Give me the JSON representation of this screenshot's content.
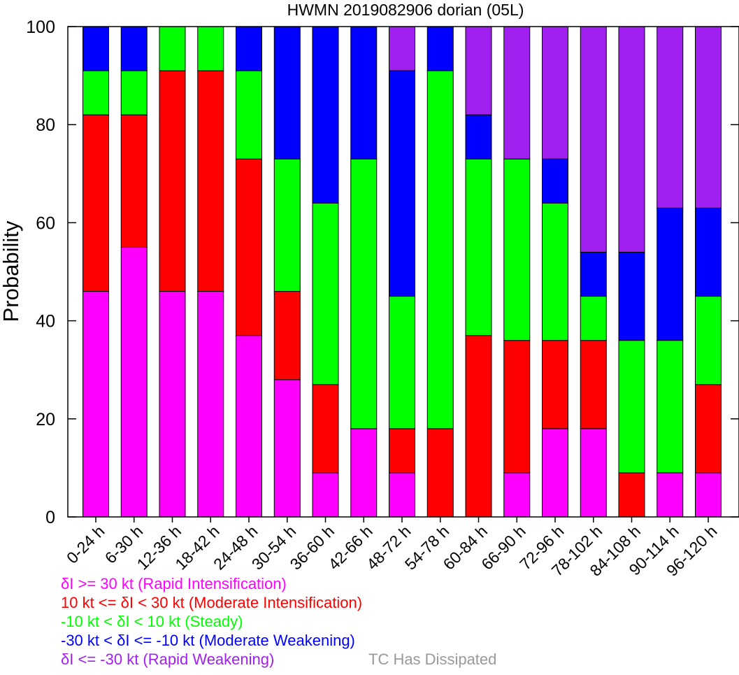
{
  "chart_data": {
    "type": "bar",
    "stacked": true,
    "title": "HWMN 2019082906 dorian (05L)",
    "xlabel": "",
    "ylabel": "Probability",
    "ylim": [
      0,
      100
    ],
    "yticks": [
      "0",
      "20",
      "40",
      "60",
      "80",
      "100"
    ],
    "grid": false,
    "categories": [
      "0-24 h",
      "6-30 h",
      "12-36 h",
      "18-42 h",
      "24-48 h",
      "30-54 h",
      "36-60 h",
      "42-66 h",
      "48-72 h",
      "54-78 h",
      "60-84 h",
      "66-90 h",
      "72-96 h",
      "78-102 h",
      "84-108 h",
      "90-114 h",
      "96-120 h"
    ],
    "series": [
      {
        "name": "δI >= 30 kt (Rapid Intensification)",
        "color": "#ff00ff",
        "values": [
          46,
          55,
          46,
          46,
          37,
          28,
          9,
          18,
          9,
          0,
          0,
          9,
          18,
          18,
          0,
          9,
          9
        ]
      },
      {
        "name": "10 kt <= δI < 30 kt (Moderate Intensification)",
        "color": "#ff0000",
        "values": [
          36,
          27,
          45,
          45,
          36,
          18,
          18,
          0,
          9,
          18,
          37,
          27,
          18,
          18,
          9,
          0,
          18
        ]
      },
      {
        "name": "-10 kt < δI < 10 kt (Steady)",
        "color": "#00ff00",
        "values": [
          9,
          9,
          9,
          9,
          18,
          27,
          37,
          55,
          27,
          73,
          36,
          37,
          28,
          9,
          27,
          27,
          18
        ]
      },
      {
        "name": "-30 kt < δI <= -10 kt (Moderate Weakening)",
        "color": "#0000ff",
        "values": [
          9,
          9,
          0,
          0,
          9,
          27,
          36,
          27,
          46,
          9,
          9,
          0,
          9,
          9,
          18,
          27,
          18
        ]
      },
      {
        "name": "δI <= -30 kt (Rapid Weakening)",
        "color": "#a020f0",
        "values": [
          0,
          0,
          0,
          0,
          0,
          0,
          0,
          0,
          9,
          0,
          18,
          27,
          27,
          46,
          46,
          37,
          37
        ]
      }
    ],
    "legend": {
      "placement": "bottom-left",
      "entries": [
        {
          "text": "δI >= 30 kt (Rapid Intensification)",
          "color": "#ff00ff"
        },
        {
          "text": "10 kt <= δI < 30 kt (Moderate Intensification)",
          "color": "#ff0000"
        },
        {
          "text": "-10 kt < δI < 10 kt (Steady)",
          "color": "#00ff00"
        },
        {
          "text": "-30 kt < δI <= -10 kt (Moderate Weakening)",
          "color": "#0000ff"
        },
        {
          "text": "δI <= -30 kt (Rapid Weakening)",
          "color": "#a020f0"
        }
      ],
      "extra": {
        "text": "TC Has Dissipated",
        "color": "#999999"
      }
    }
  }
}
